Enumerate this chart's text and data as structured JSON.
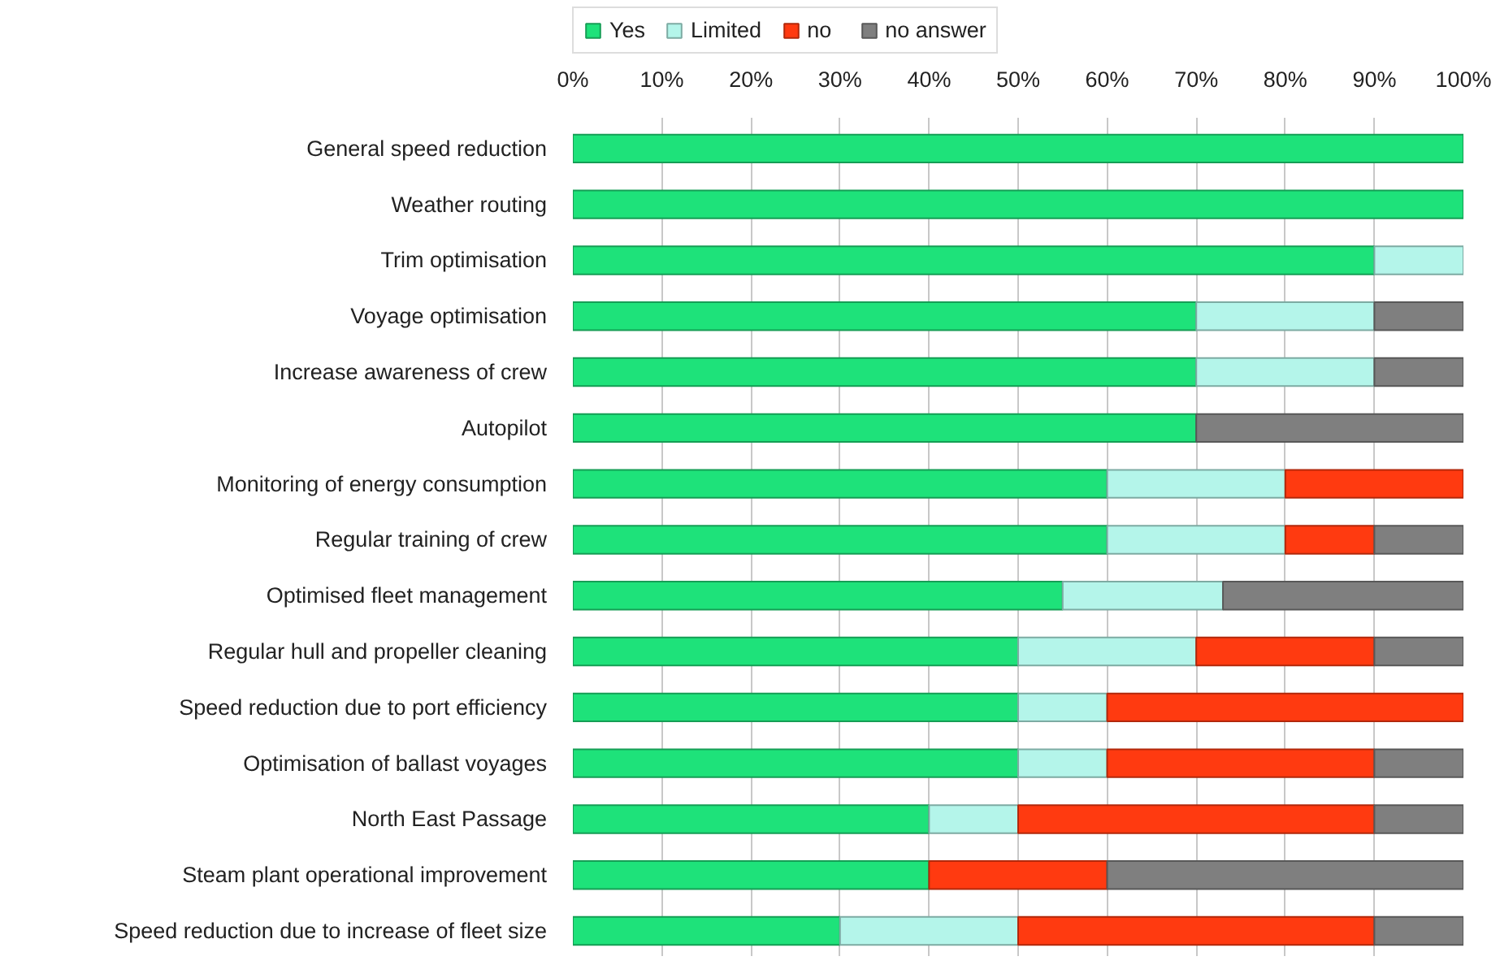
{
  "chart_data": {
    "type": "bar",
    "orientation": "horizontal",
    "stacked": true,
    "categories": [
      "General speed reduction",
      "Weather routing",
      "Trim optimisation",
      "Voyage optimisation",
      "Increase awareness of crew",
      "Autopilot",
      "Monitoring of energy consumption",
      "Regular training of crew",
      "Optimised fleet management",
      "Regular hull and propeller cleaning",
      "Speed reduction due to port efficiency",
      "Optimisation of ballast voyages",
      "North East Passage",
      "Steam plant operational improvement",
      "Speed reduction due to increase of fleet size"
    ],
    "series": [
      {
        "name": "Yes",
        "color": "#1ee27a",
        "values": [
          100,
          100,
          90,
          70,
          70,
          70,
          60,
          60,
          55,
          50,
          50,
          50,
          40,
          40,
          30
        ]
      },
      {
        "name": "Limited",
        "color": "#b4f5ea",
        "values": [
          0,
          0,
          10,
          20,
          20,
          0,
          20,
          20,
          18,
          20,
          10,
          10,
          10,
          0,
          20
        ]
      },
      {
        "name": "no",
        "color": "#ff3a10",
        "values": [
          0,
          0,
          0,
          0,
          0,
          0,
          20,
          10,
          0,
          20,
          40,
          30,
          40,
          20,
          40
        ]
      },
      {
        "name": "no answer",
        "color": "#7f7f7f",
        "values": [
          0,
          0,
          0,
          10,
          10,
          30,
          0,
          10,
          27,
          10,
          0,
          10,
          10,
          40,
          10
        ]
      }
    ],
    "xlim": [
      0,
      100
    ],
    "xticks": [
      {
        "value": 0,
        "label": "0%"
      },
      {
        "value": 10,
        "label": "10%"
      },
      {
        "value": 20,
        "label": "20%"
      },
      {
        "value": 30,
        "label": "30%"
      },
      {
        "value": 40,
        "label": "40%"
      },
      {
        "value": 50,
        "label": "50%"
      },
      {
        "value": 60,
        "label": "60%"
      },
      {
        "value": 70,
        "label": "70%"
      },
      {
        "value": 80,
        "label": "80%"
      },
      {
        "value": 90,
        "label": "90%"
      },
      {
        "value": 100,
        "label": "100%"
      }
    ],
    "grid": "x",
    "legend": "top"
  }
}
